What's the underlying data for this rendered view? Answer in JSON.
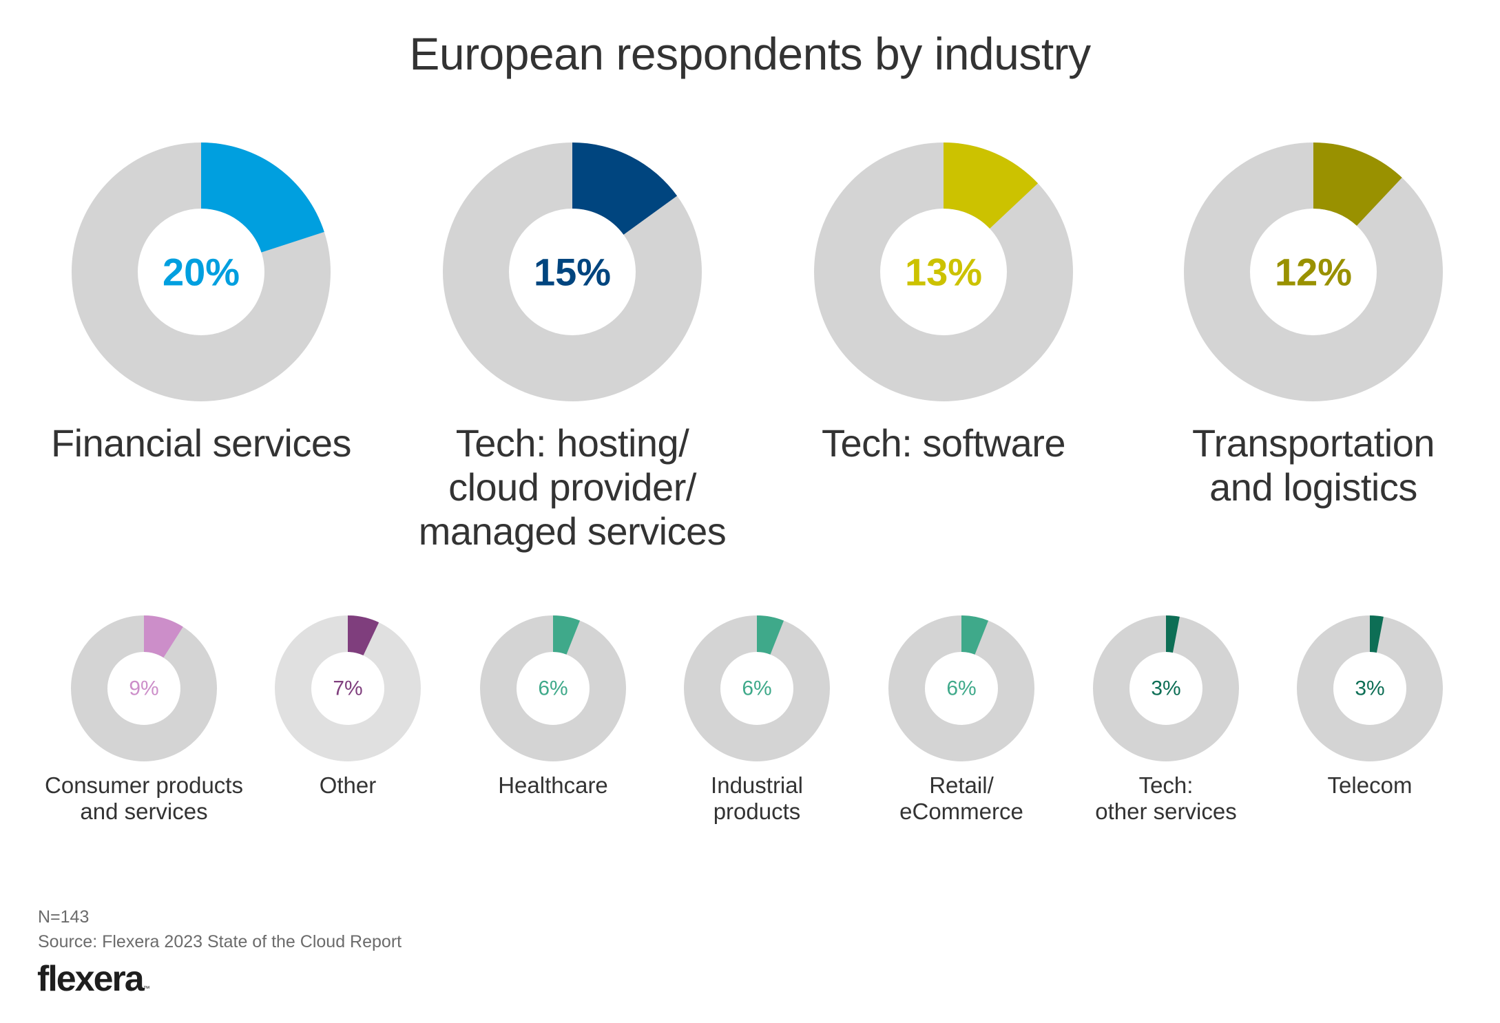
{
  "chart_data": {
    "type": "pie",
    "subtype": "donut-grid",
    "title": "European respondents by industry",
    "unit": "%",
    "track_color": "#d4d4d4",
    "series": [
      {
        "name": "Financial services",
        "label_lines": [
          "Financial services"
        ],
        "value": 20,
        "display": "20%",
        "color": "#009fdf",
        "size": "large"
      },
      {
        "name": "Tech: hosting/cloud provider/managed services",
        "label_lines": [
          "Tech: hosting/",
          "cloud provider/",
          "managed services"
        ],
        "value": 15,
        "display": "15%",
        "color": "#00457f",
        "size": "large"
      },
      {
        "name": "Tech: software",
        "label_lines": [
          "Tech: software"
        ],
        "value": 13,
        "display": "13%",
        "color": "#ccc200",
        "size": "large"
      },
      {
        "name": "Transportation and logistics",
        "label_lines": [
          "Transportation",
          "and logistics"
        ],
        "value": 12,
        "display": "12%",
        "color": "#999100",
        "size": "large"
      },
      {
        "name": "Consumer products and services",
        "label_lines": [
          "Consumer products",
          "and services"
        ],
        "value": 9,
        "display": "9%",
        "color": "#cc8ec9",
        "size": "small"
      },
      {
        "name": "Other",
        "label_lines": [
          "Other"
        ],
        "value": 7,
        "display": "7%",
        "color": "#7f3e7d",
        "track_color": "#e0e0e0",
        "size": "small"
      },
      {
        "name": "Healthcare",
        "label_lines": [
          "Healthcare"
        ],
        "value": 6,
        "display": "6%",
        "color": "#3fa98a",
        "size": "small"
      },
      {
        "name": "Industrial products",
        "label_lines": [
          "Industrial",
          "products"
        ],
        "value": 6,
        "display": "6%",
        "color": "#3fa98a",
        "size": "small"
      },
      {
        "name": "Retail/eCommerce",
        "label_lines": [
          "Retail/",
          "eCommerce"
        ],
        "value": 6,
        "display": "6%",
        "color": "#3fa98a",
        "size": "small"
      },
      {
        "name": "Tech: other services",
        "label_lines": [
          "Tech:",
          "other services"
        ],
        "value": 3,
        "display": "3%",
        "color": "#0d6e55",
        "size": "small"
      },
      {
        "name": "Telecom",
        "label_lines": [
          "Telecom"
        ],
        "value": 3,
        "display": "3%",
        "color": "#0d6e55",
        "size": "small"
      }
    ]
  },
  "footer": {
    "sample_size": "N=143",
    "source": "Source: Flexera 2023 State of the Cloud Report",
    "logo_text": "flexera",
    "logo_mark": "™"
  }
}
